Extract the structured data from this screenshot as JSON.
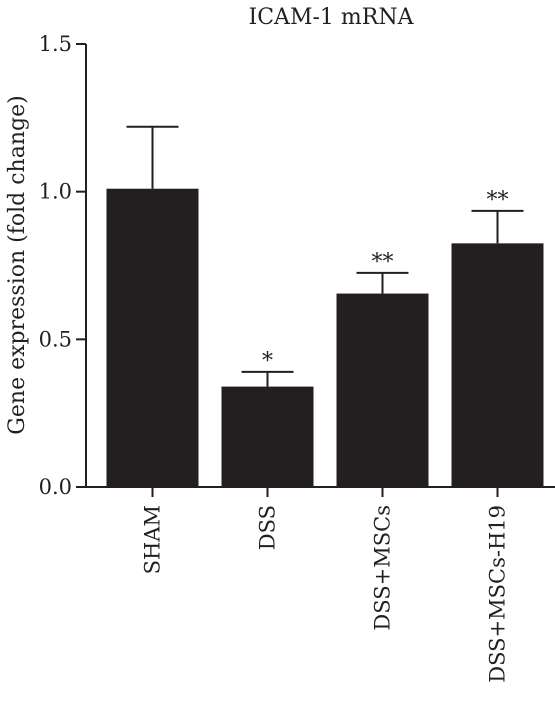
{
  "chart_data": {
    "type": "bar",
    "title": "ICAM-1 mRNA",
    "xlabel": "",
    "ylabel": "Gene expression (fold change)",
    "ylim": [
      0,
      1.5
    ],
    "yticks": [
      "0.0",
      "0.5",
      "1.0",
      "1.5"
    ],
    "categories": [
      "SHAM",
      "DSS",
      "DSS+MSCs",
      "DSS+MSCs-H19"
    ],
    "values": [
      1.01,
      0.34,
      0.655,
      0.825
    ],
    "error": [
      0.21,
      0.05,
      0.07,
      0.11
    ],
    "significance": [
      "",
      "*",
      "**",
      "**"
    ],
    "bar_color": "#231f20",
    "grid": false,
    "legend": "none"
  }
}
